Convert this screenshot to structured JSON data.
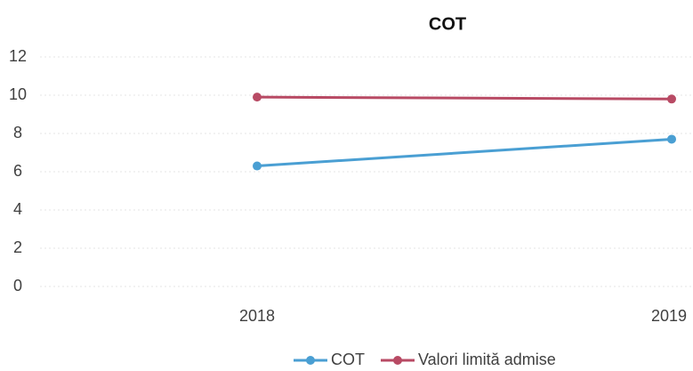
{
  "chart_data": {
    "type": "line",
    "title": "COT",
    "categories": [
      "2018",
      "2019"
    ],
    "series": [
      {
        "name": "COT",
        "color": "#4a9fd3",
        "values": [
          6.3,
          7.7
        ]
      },
      {
        "name": "Valori limită admise",
        "color": "#b84a64",
        "values": [
          9.9,
          9.8
        ]
      }
    ],
    "ylim": [
      0,
      12
    ],
    "yticks": [
      0,
      2,
      4,
      6,
      8,
      10,
      12
    ],
    "grid": true,
    "legend": "bottom"
  }
}
